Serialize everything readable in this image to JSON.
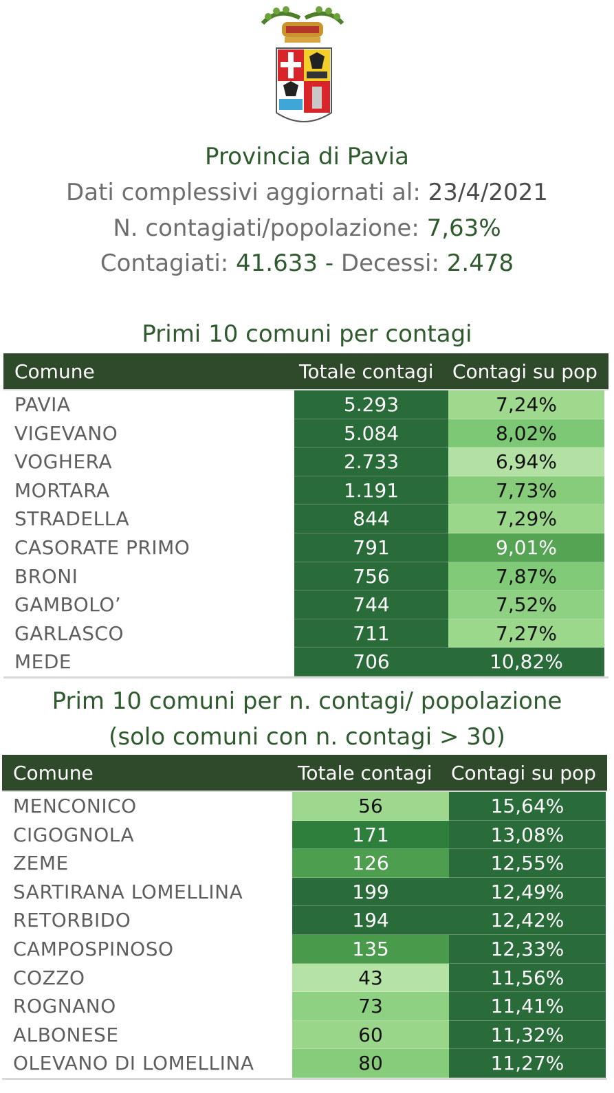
{
  "header": {
    "province": "Provincia di Pavia",
    "updated_label": "Dati complessivi aggiornati al:",
    "updated_value": "23/4/2021",
    "ratio_label": "N. contagiati/popolazione:",
    "ratio_value": "7,63%",
    "infected_label": "Contagiati:",
    "infected_value": "41.633",
    "separator": "-",
    "deaths_label": "Decessi:",
    "deaths_value": "2.478"
  },
  "table1": {
    "title": "Primi 10 comuni per contagi",
    "columns": [
      "Comune",
      "Totale contagi",
      "Contagi su pop"
    ],
    "rows": [
      {
        "name": "PAVIA",
        "total": "5.293",
        "pct": "7,24%",
        "tot_shade": "#2a6b3a",
        "pct_shade": "#9fd98e",
        "pct_text": "#111111"
      },
      {
        "name": "VIGEVANO",
        "total": "5.084",
        "pct": "8,02%",
        "tot_shade": "#2a6b3a",
        "pct_shade": "#7dc874",
        "pct_text": "#111111"
      },
      {
        "name": "VOGHERA",
        "total": "2.733",
        "pct": "6,94%",
        "tot_shade": "#2a6b3a",
        "pct_shade": "#b3e1a3",
        "pct_text": "#111111"
      },
      {
        "name": "MORTARA",
        "total": "1.191",
        "pct": "7,73%",
        "tot_shade": "#2a6b3a",
        "pct_shade": "#86cc7b",
        "pct_text": "#111111"
      },
      {
        "name": "STRADELLA",
        "total": "844",
        "pct": "7,29%",
        "tot_shade": "#2a6b3a",
        "pct_shade": "#9bd78b",
        "pct_text": "#111111"
      },
      {
        "name": "CASORATE PRIMO",
        "total": "791",
        "pct": "9,01%",
        "tot_shade": "#2a6b3a",
        "pct_shade": "#55a453",
        "pct_text": "#ffffff"
      },
      {
        "name": "BRONI",
        "total": "756",
        "pct": "7,87%",
        "tot_shade": "#2a6b3a",
        "pct_shade": "#81ca77",
        "pct_text": "#111111"
      },
      {
        "name": "GAMBOLO’",
        "total": "744",
        "pct": "7,52%",
        "tot_shade": "#2a6b3a",
        "pct_shade": "#8fd182",
        "pct_text": "#111111"
      },
      {
        "name": "GARLASCO",
        "total": "711",
        "pct": "7,27%",
        "tot_shade": "#2a6b3a",
        "pct_shade": "#9cd88c",
        "pct_text": "#111111"
      },
      {
        "name": "MEDE",
        "total": "706",
        "pct": "10,82%",
        "tot_shade": "#2a6b3a",
        "pct_shade": "#2a6b3a",
        "pct_text": "#ffffff"
      }
    ]
  },
  "table2": {
    "title_line1": "Prim 10 comuni per n. contagi/ popolazione",
    "title_line2": "(solo comuni con n. contagi > 30)",
    "columns": [
      "Comune",
      "Totale contagi",
      "Contagi su pop"
    ],
    "rows": [
      {
        "name": "MENCONICO",
        "total": "56",
        "pct": "15,64%",
        "tot_shade": "#9ed88e",
        "tot_text": "#111111",
        "pct_shade": "#2a6b3a"
      },
      {
        "name": "CIGOGNOLA",
        "total": "171",
        "pct": "13,08%",
        "tot_shade": "#2f7f3c",
        "tot_text": "#ffffff",
        "pct_shade": "#2a6b3a"
      },
      {
        "name": "ZEME",
        "total": "126",
        "pct": "12,55%",
        "tot_shade": "#4e9e4f",
        "tot_text": "#ffffff",
        "pct_shade": "#2a6b3a"
      },
      {
        "name": "SARTIRANA LOMELLINA",
        "total": "199",
        "pct": "12,49%",
        "tot_shade": "#2a6b3a",
        "tot_text": "#ffffff",
        "pct_shade": "#2a6b3a"
      },
      {
        "name": "RETORBIDO",
        "total": "194",
        "pct": "12,42%",
        "tot_shade": "#2a6b3a",
        "tot_text": "#ffffff",
        "pct_shade": "#2a6b3a"
      },
      {
        "name": "CAMPOSPINOSO",
        "total": "135",
        "pct": "12,33%",
        "tot_shade": "#4a9a4c",
        "tot_text": "#ffffff",
        "pct_shade": "#2a6b3a"
      },
      {
        "name": "COZZO",
        "total": "43",
        "pct": "11,56%",
        "tot_shade": "#b5e2a5",
        "tot_text": "#111111",
        "pct_shade": "#2a6b3a"
      },
      {
        "name": "ROGNANO",
        "total": "73",
        "pct": "11,41%",
        "tot_shade": "#8fd182",
        "tot_text": "#111111",
        "pct_shade": "#2a6b3a"
      },
      {
        "name": "ALBONESE",
        "total": "60",
        "pct": "11,32%",
        "tot_shade": "#99d689",
        "tot_text": "#111111",
        "pct_shade": "#2a6b3a"
      },
      {
        "name": "OLEVANO DI LOMELLINA",
        "total": "80",
        "pct": "11,27%",
        "tot_shade": "#86cc7b",
        "tot_text": "#111111",
        "pct_shade": "#2a6b3a"
      }
    ]
  }
}
